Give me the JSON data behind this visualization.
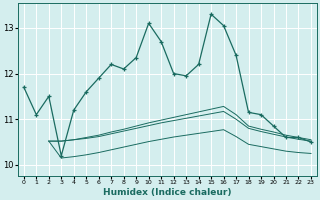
{
  "xlabel": "Humidex (Indice chaleur)",
  "ylabel": "",
  "bg_color": "#d4eeee",
  "grid_color": "#ffffff",
  "line_color": "#1a6b60",
  "xlim": [
    -0.5,
    23.5
  ],
  "ylim": [
    9.75,
    13.55
  ],
  "yticks": [
    10,
    11,
    12,
    13
  ],
  "xticks": [
    0,
    1,
    2,
    3,
    4,
    5,
    6,
    7,
    8,
    9,
    10,
    11,
    12,
    13,
    14,
    15,
    16,
    17,
    18,
    19,
    20,
    21,
    22,
    23
  ],
  "main_line": {
    "x": [
      0,
      1,
      2,
      3,
      4,
      5,
      6,
      7,
      8,
      9,
      10,
      11,
      12,
      13,
      14,
      15,
      16,
      17,
      18,
      19,
      20,
      21,
      22,
      23
    ],
    "y": [
      11.7,
      11.1,
      11.5,
      10.2,
      11.2,
      11.6,
      11.9,
      12.2,
      12.1,
      12.35,
      13.1,
      12.7,
      12.0,
      11.95,
      12.2,
      13.3,
      13.05,
      12.4,
      11.15,
      11.1,
      10.85,
      10.6,
      10.6,
      10.5
    ]
  },
  "upper_band": {
    "x": [
      2,
      3,
      4,
      5,
      6,
      7,
      8,
      9,
      10,
      11,
      12,
      13,
      14,
      15,
      16,
      17,
      18,
      19,
      20,
      21,
      22,
      23
    ],
    "y": [
      10.52,
      10.52,
      10.55,
      10.6,
      10.65,
      10.72,
      10.78,
      10.85,
      10.92,
      10.98,
      11.04,
      11.1,
      11.16,
      11.22,
      11.28,
      11.1,
      10.85,
      10.78,
      10.72,
      10.65,
      10.6,
      10.55
    ]
  },
  "mid_band": {
    "x": [
      2,
      3,
      4,
      5,
      6,
      7,
      8,
      9,
      10,
      11,
      12,
      13,
      14,
      15,
      16,
      17,
      18,
      19,
      20,
      21,
      22,
      23
    ],
    "y": [
      10.52,
      10.52,
      10.55,
      10.58,
      10.62,
      10.68,
      10.74,
      10.8,
      10.86,
      10.92,
      10.97,
      11.02,
      11.07,
      11.12,
      11.17,
      11.0,
      10.8,
      10.73,
      10.67,
      10.61,
      10.56,
      10.52
    ]
  },
  "lower_band": {
    "x": [
      2,
      3,
      4,
      5,
      6,
      7,
      8,
      9,
      10,
      11,
      12,
      13,
      14,
      15,
      16,
      17,
      18,
      19,
      20,
      21,
      22,
      23
    ],
    "y": [
      10.52,
      10.15,
      10.18,
      10.22,
      10.27,
      10.33,
      10.39,
      10.45,
      10.51,
      10.56,
      10.61,
      10.65,
      10.69,
      10.73,
      10.77,
      10.62,
      10.45,
      10.4,
      10.35,
      10.3,
      10.27,
      10.25
    ]
  }
}
